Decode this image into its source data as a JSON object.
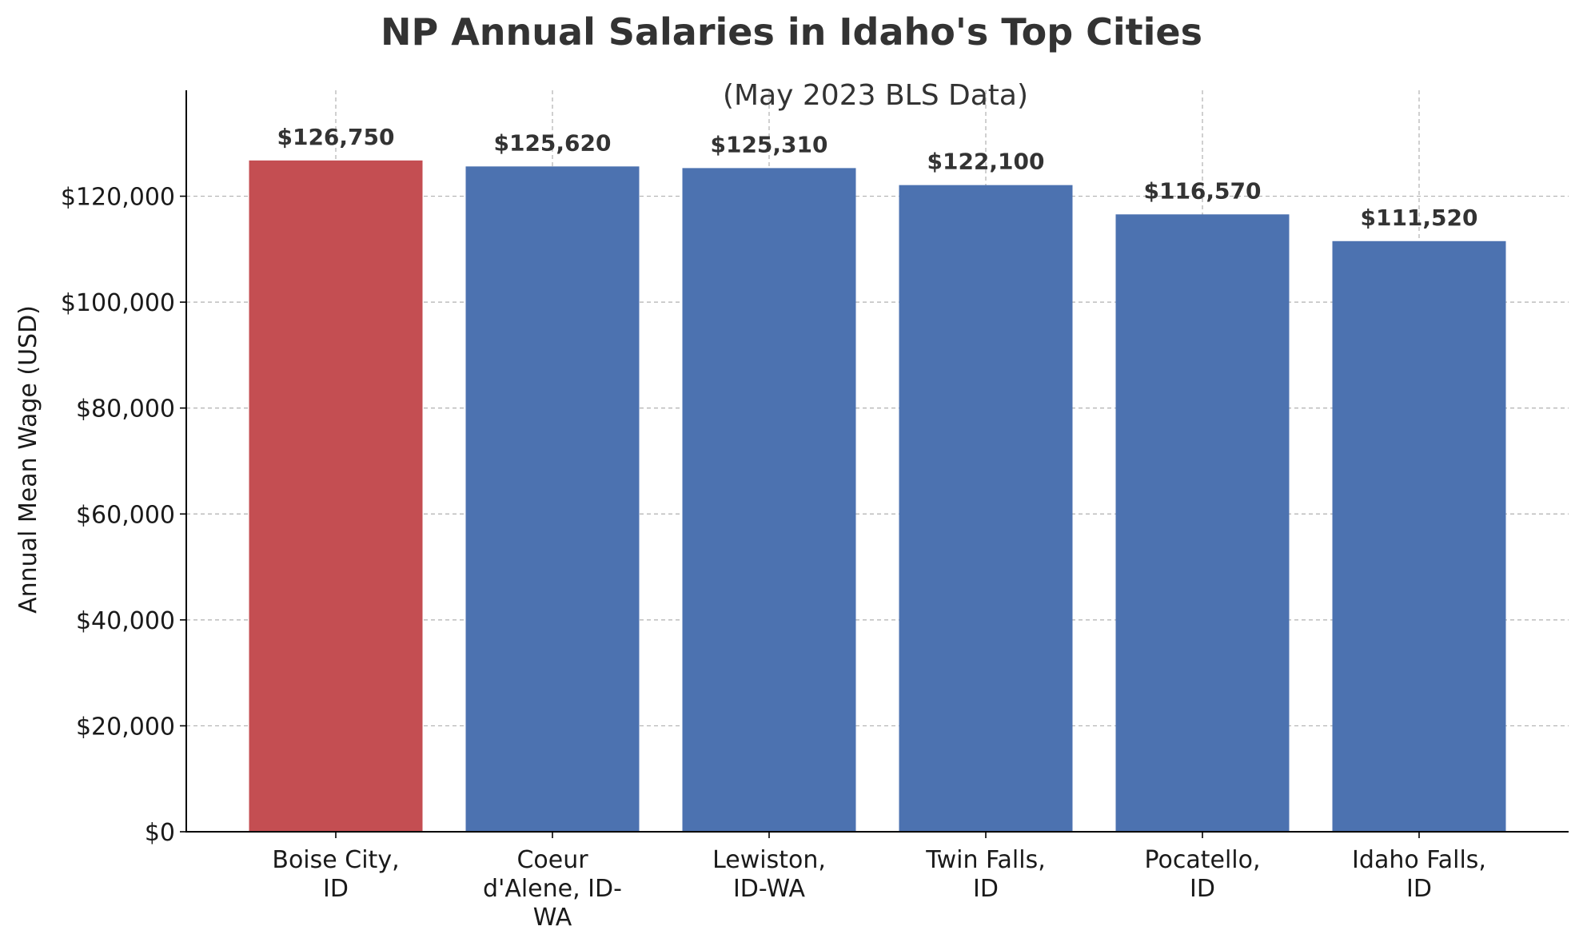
{
  "chart_data": {
    "type": "bar",
    "title": "NP Annual Salaries in Idaho's Top Cities",
    "subtitle": "(May 2023 BLS Data)",
    "xlabel": "",
    "ylabel": "Annual Mean Wage (USD)",
    "ylim": [
      0,
      140000
    ],
    "yticks": [
      0,
      20000,
      40000,
      60000,
      80000,
      100000,
      120000
    ],
    "ytick_labels": [
      "$0",
      "$20,000",
      "$40,000",
      "$60,000",
      "$80,000",
      "$100,000",
      "$120,000"
    ],
    "grid": true,
    "categories": [
      "Boise City, ID",
      "Coeur d'Alene, ID-WA",
      "Lewiston, ID-WA",
      "Twin Falls, ID",
      "Pocatello, ID",
      "Idaho Falls, ID"
    ],
    "category_lines": [
      [
        "Boise City,",
        "ID"
      ],
      [
        "Coeur",
        "d'Alene, ID-",
        "WA"
      ],
      [
        "Lewiston,",
        "ID-WA"
      ],
      [
        "Twin Falls,",
        "ID"
      ],
      [
        "Pocatello,",
        "ID"
      ],
      [
        "Idaho Falls,",
        "ID"
      ]
    ],
    "values": [
      126750,
      125620,
      125310,
      122100,
      116570,
      111520
    ],
    "value_labels": [
      "$126,750",
      "$125,620",
      "$125,310",
      "$122,100",
      "$116,570",
      "$111,520"
    ],
    "colors": [
      "#c44e52",
      "#4c72b0",
      "#4c72b0",
      "#4c72b0",
      "#4c72b0",
      "#4c72b0"
    ]
  }
}
